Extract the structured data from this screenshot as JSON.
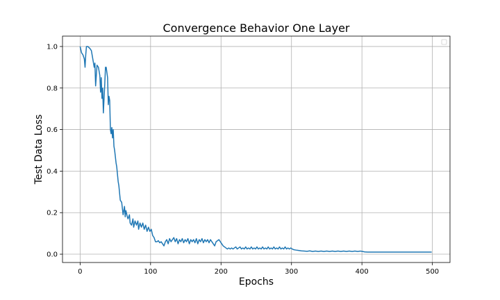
{
  "chart_data": {
    "type": "line",
    "title": "Convergence Behavior One Layer",
    "xlabel": "Epochs",
    "ylabel": "Test Data Loss",
    "xlim": [
      -25,
      525
    ],
    "ylim": [
      -0.04,
      1.05
    ],
    "xticks": [
      0,
      100,
      200,
      300,
      400,
      500
    ],
    "yticks": [
      0.0,
      0.2,
      0.4,
      0.6,
      0.8,
      1.0
    ],
    "xtick_labels": [
      "0",
      "100",
      "200",
      "300",
      "400",
      "500"
    ],
    "ytick_labels": [
      "0.0",
      "0.2",
      "0.4",
      "0.6",
      "0.8",
      "1.0"
    ],
    "grid": true,
    "legend": {
      "placement": "upper right",
      "entries": []
    },
    "series": [
      {
        "color": "#1f77b4",
        "points": [
          [
            0,
            1.0
          ],
          [
            2,
            0.97
          ],
          [
            4,
            0.96
          ],
          [
            6,
            0.94
          ],
          [
            7,
            0.9
          ],
          [
            8,
            0.96
          ],
          [
            9,
            1.0
          ],
          [
            11,
            1.0
          ],
          [
            14,
            0.99
          ],
          [
            16,
            0.98
          ],
          [
            18,
            0.94
          ],
          [
            20,
            0.9
          ],
          [
            21,
            0.92
          ],
          [
            22,
            0.81
          ],
          [
            23,
            0.86
          ],
          [
            24,
            0.91
          ],
          [
            26,
            0.9
          ],
          [
            28,
            0.86
          ],
          [
            29,
            0.78
          ],
          [
            30,
            0.85
          ],
          [
            31,
            0.75
          ],
          [
            32,
            0.8
          ],
          [
            33,
            0.68
          ],
          [
            35,
            0.82
          ],
          [
            36,
            0.9
          ],
          [
            37,
            0.9
          ],
          [
            39,
            0.85
          ],
          [
            40,
            0.72
          ],
          [
            41,
            0.76
          ],
          [
            42,
            0.74
          ],
          [
            43,
            0.6
          ],
          [
            44,
            0.58
          ],
          [
            45,
            0.61
          ],
          [
            46,
            0.56
          ],
          [
            47,
            0.6
          ],
          [
            48,
            0.52
          ],
          [
            49,
            0.5
          ],
          [
            51,
            0.44
          ],
          [
            52,
            0.42
          ],
          [
            54,
            0.35
          ],
          [
            55,
            0.33
          ],
          [
            57,
            0.26
          ],
          [
            59,
            0.25
          ],
          [
            60,
            0.22
          ],
          [
            61,
            0.19
          ],
          [
            63,
            0.23
          ],
          [
            64,
            0.18
          ],
          [
            65,
            0.21
          ],
          [
            67,
            0.18
          ],
          [
            68,
            0.17
          ],
          [
            70,
            0.19
          ],
          [
            71,
            0.15
          ],
          [
            73,
            0.14
          ],
          [
            75,
            0.17
          ],
          [
            76,
            0.13
          ],
          [
            78,
            0.16
          ],
          [
            80,
            0.14
          ],
          [
            82,
            0.16
          ],
          [
            83,
            0.12
          ],
          [
            85,
            0.15
          ],
          [
            87,
            0.13
          ],
          [
            89,
            0.15
          ],
          [
            91,
            0.12
          ],
          [
            93,
            0.14
          ],
          [
            95,
            0.11
          ],
          [
            97,
            0.13
          ],
          [
            99,
            0.11
          ],
          [
            101,
            0.12
          ],
          [
            103,
            0.09
          ],
          [
            105,
            0.08
          ],
          [
            107,
            0.06
          ],
          [
            109,
            0.06
          ],
          [
            111,
            0.065
          ],
          [
            113,
            0.055
          ],
          [
            115,
            0.06
          ],
          [
            117,
            0.05
          ],
          [
            119,
            0.04
          ],
          [
            121,
            0.06
          ],
          [
            123,
            0.07
          ],
          [
            125,
            0.05
          ],
          [
            127,
            0.075
          ],
          [
            129,
            0.06
          ],
          [
            131,
            0.07
          ],
          [
            133,
            0.08
          ],
          [
            135,
            0.06
          ],
          [
            137,
            0.075
          ],
          [
            139,
            0.05
          ],
          [
            141,
            0.07
          ],
          [
            143,
            0.06
          ],
          [
            145,
            0.075
          ],
          [
            147,
            0.055
          ],
          [
            149,
            0.07
          ],
          [
            151,
            0.06
          ],
          [
            153,
            0.075
          ],
          [
            155,
            0.05
          ],
          [
            157,
            0.07
          ],
          [
            159,
            0.06
          ],
          [
            161,
            0.07
          ],
          [
            163,
            0.055
          ],
          [
            165,
            0.075
          ],
          [
            167,
            0.05
          ],
          [
            169,
            0.07
          ],
          [
            171,
            0.06
          ],
          [
            173,
            0.075
          ],
          [
            175,
            0.055
          ],
          [
            177,
            0.07
          ],
          [
            179,
            0.06
          ],
          [
            181,
            0.07
          ],
          [
            183,
            0.055
          ],
          [
            185,
            0.07
          ],
          [
            187,
            0.06
          ],
          [
            189,
            0.05
          ],
          [
            191,
            0.04
          ],
          [
            193,
            0.06
          ],
          [
            195,
            0.065
          ],
          [
            197,
            0.07
          ],
          [
            199,
            0.06
          ],
          [
            201,
            0.05
          ],
          [
            203,
            0.04
          ],
          [
            205,
            0.035
          ],
          [
            207,
            0.03
          ],
          [
            209,
            0.025
          ],
          [
            211,
            0.03
          ],
          [
            213,
            0.025
          ],
          [
            215,
            0.03
          ],
          [
            217,
            0.025
          ],
          [
            219,
            0.03
          ],
          [
            221,
            0.035
          ],
          [
            223,
            0.025
          ],
          [
            225,
            0.03
          ],
          [
            227,
            0.035
          ],
          [
            229,
            0.025
          ],
          [
            231,
            0.03
          ],
          [
            233,
            0.025
          ],
          [
            235,
            0.035
          ],
          [
            237,
            0.025
          ],
          [
            239,
            0.03
          ],
          [
            241,
            0.025
          ],
          [
            243,
            0.035
          ],
          [
            245,
            0.025
          ],
          [
            247,
            0.03
          ],
          [
            249,
            0.025
          ],
          [
            251,
            0.035
          ],
          [
            253,
            0.025
          ],
          [
            255,
            0.03
          ],
          [
            257,
            0.025
          ],
          [
            259,
            0.035
          ],
          [
            261,
            0.025
          ],
          [
            263,
            0.03
          ],
          [
            265,
            0.025
          ],
          [
            267,
            0.035
          ],
          [
            269,
            0.025
          ],
          [
            271,
            0.03
          ],
          [
            273,
            0.025
          ],
          [
            275,
            0.035
          ],
          [
            277,
            0.025
          ],
          [
            279,
            0.03
          ],
          [
            281,
            0.025
          ],
          [
            283,
            0.035
          ],
          [
            285,
            0.025
          ],
          [
            287,
            0.03
          ],
          [
            289,
            0.025
          ],
          [
            291,
            0.035
          ],
          [
            293,
            0.025
          ],
          [
            295,
            0.03
          ],
          [
            297,
            0.025
          ],
          [
            299,
            0.03
          ],
          [
            301,
            0.025
          ],
          [
            303,
            0.022
          ],
          [
            306,
            0.02
          ],
          [
            310,
            0.018
          ],
          [
            314,
            0.016
          ],
          [
            318,
            0.015
          ],
          [
            322,
            0.014
          ],
          [
            326,
            0.016
          ],
          [
            330,
            0.013
          ],
          [
            334,
            0.015
          ],
          [
            338,
            0.013
          ],
          [
            342,
            0.015
          ],
          [
            346,
            0.013
          ],
          [
            350,
            0.015
          ],
          [
            354,
            0.013
          ],
          [
            358,
            0.015
          ],
          [
            362,
            0.013
          ],
          [
            366,
            0.015
          ],
          [
            370,
            0.013
          ],
          [
            374,
            0.015
          ],
          [
            378,
            0.013
          ],
          [
            382,
            0.015
          ],
          [
            386,
            0.013
          ],
          [
            390,
            0.015
          ],
          [
            394,
            0.013
          ],
          [
            398,
            0.015
          ],
          [
            401,
            0.013
          ],
          [
            404,
            0.011
          ],
          [
            408,
            0.01
          ],
          [
            420,
            0.01
          ],
          [
            440,
            0.01
          ],
          [
            460,
            0.01
          ],
          [
            480,
            0.01
          ],
          [
            499,
            0.01
          ]
        ]
      }
    ]
  }
}
